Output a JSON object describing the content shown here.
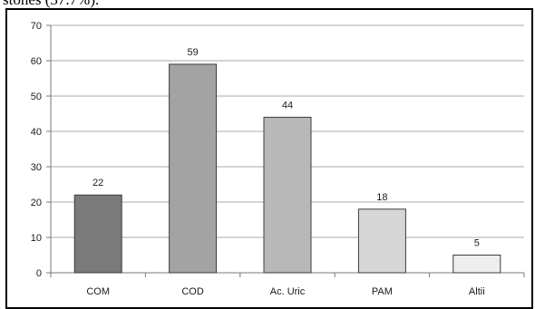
{
  "page": {
    "caption_fragment": "stones (37.7%)."
  },
  "chart_data": {
    "type": "bar",
    "categories": [
      "COM",
      "COD",
      "Ac. Uric",
      "PAM",
      "Altii"
    ],
    "values": [
      22,
      59,
      44,
      18,
      5
    ],
    "data_labels": [
      "22",
      "59",
      "44",
      "18",
      "5"
    ],
    "bar_colors": [
      "#7a7a7a",
      "#a3a3a3",
      "#b8b8b8",
      "#d6d6d6",
      "#eeeeee"
    ],
    "bar_stroke": "#3c3c3c",
    "ylim": [
      0,
      70
    ],
    "yticks": [
      0,
      10,
      20,
      30,
      40,
      50,
      60,
      70
    ],
    "ytick_labels": [
      "0",
      "10",
      "20",
      "30",
      "40",
      "50",
      "60",
      "70"
    ],
    "gridlines": true,
    "legend": false
  }
}
